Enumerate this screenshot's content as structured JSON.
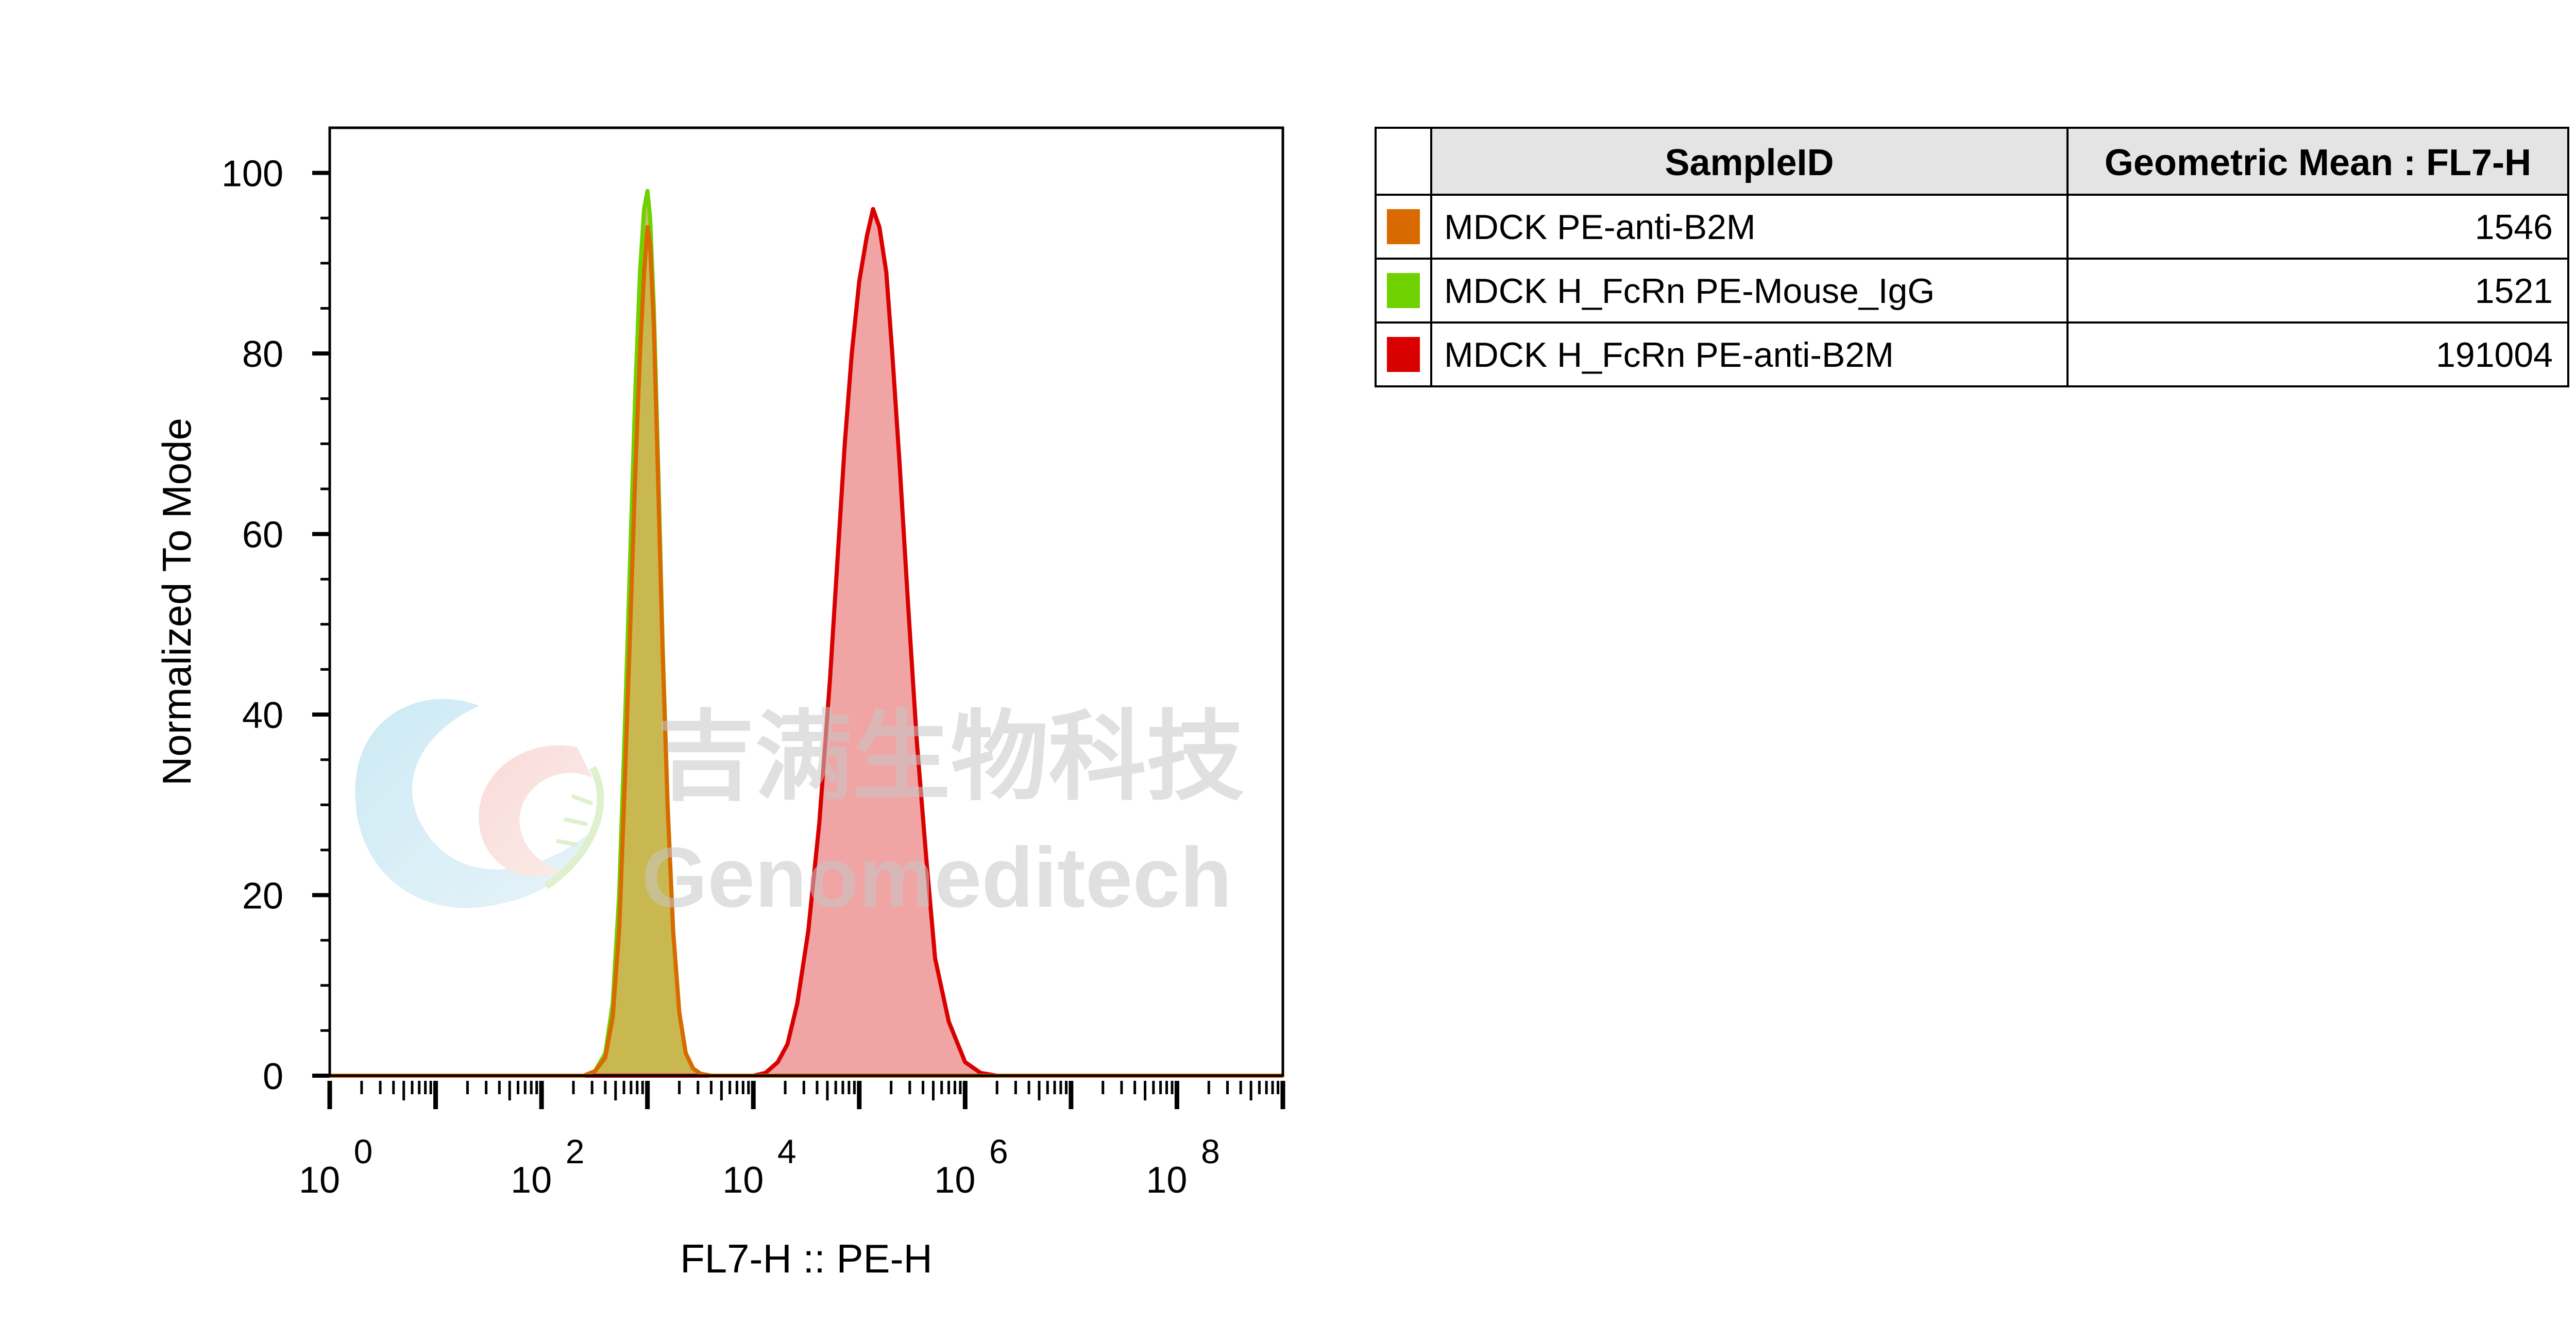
{
  "chart_data": {
    "type": "area",
    "xlabel": "FL7-H :: PE-H",
    "ylabel": "Normalized To Mode",
    "x_scale": "log10",
    "xlim": [
      1,
      1000000000
    ],
    "ylim": [
      0,
      105
    ],
    "x_ticks": [
      {
        "base": "10",
        "exp": "0",
        "value": 1
      },
      {
        "base": "10",
        "exp": "2",
        "value": 100
      },
      {
        "base": "10",
        "exp": "4",
        "value": 10000
      },
      {
        "base": "10",
        "exp": "6",
        "value": 1000000
      },
      {
        "base": "10",
        "exp": "8",
        "value": 100000000
      }
    ],
    "y_ticks": [
      "0",
      "20",
      "40",
      "60",
      "80",
      "100"
    ],
    "grid": false,
    "series": [
      {
        "name": "MDCK H_FcRn PE-anti-B2M",
        "color": "#d90000",
        "fill": "#ee9a9a",
        "x": [
          1,
          10000,
          13000,
          17000,
          21000,
          26000,
          33000,
          42000,
          53000,
          63000,
          73000,
          85000,
          100000,
          118000,
          135000,
          155000,
          180000,
          205000,
          240000,
          290000,
          350000,
          430000,
          520000,
          700000,
          1000000,
          1400000,
          2000000,
          1000000000
        ],
        "y": [
          0,
          0,
          0.3,
          1.5,
          3.5,
          8,
          16,
          28,
          44,
          58,
          70,
          80,
          88,
          93,
          96,
          94,
          89,
          80,
          68,
          52,
          37,
          24,
          13,
          6,
          1.5,
          0.3,
          0,
          0
        ]
      },
      {
        "name": "MDCK H_FcRn PE-Mouse_IgG",
        "color": "#6fd100",
        "fill": "#c9b74f",
        "x": [
          1,
          250,
          320,
          400,
          470,
          540,
          610,
          690,
          770,
          850,
          930,
          1000,
          1060,
          1150,
          1260,
          1390,
          1550,
          1750,
          2000,
          2300,
          2700,
          3200,
          4000,
          1000000000
        ],
        "y": [
          0,
          0,
          0.5,
          2.5,
          8,
          20,
          38,
          58,
          76,
          89,
          96,
          98,
          95,
          85,
          68,
          48,
          30,
          16,
          7,
          2.5,
          0.8,
          0.2,
          0,
          0
        ]
      },
      {
        "name": "MDCK PE-anti-B2M",
        "color": "#d96a00",
        "fill": "#c9b74f",
        "x": [
          1,
          250,
          320,
          400,
          470,
          540,
          610,
          690,
          770,
          850,
          930,
          1000,
          1060,
          1150,
          1260,
          1390,
          1550,
          1750,
          2000,
          2300,
          2700,
          3200,
          4000,
          1000000000
        ],
        "y": [
          0,
          0,
          0.5,
          2,
          6.5,
          16,
          32,
          50,
          67,
          80,
          89,
          94,
          92,
          83,
          66,
          47,
          30,
          16,
          7,
          2.5,
          0.8,
          0.2,
          0,
          0
        ]
      }
    ]
  },
  "legend_table": {
    "headers": [
      "SampleID",
      "Geometric Mean : FL7-H"
    ],
    "rows": [
      {
        "swatch": "#d96a00",
        "sample": "MDCK PE-anti-B2M",
        "value": "1546"
      },
      {
        "swatch": "#6fd100",
        "sample": "MDCK H_FcRn PE-Mouse_IgG",
        "value": "1521"
      },
      {
        "swatch": "#d90000",
        "sample": "MDCK H_FcRn PE-anti-B2M",
        "value": "191004"
      }
    ]
  },
  "watermark": {
    "cn": "吉满生物科技",
    "en": "Genomeditech"
  }
}
